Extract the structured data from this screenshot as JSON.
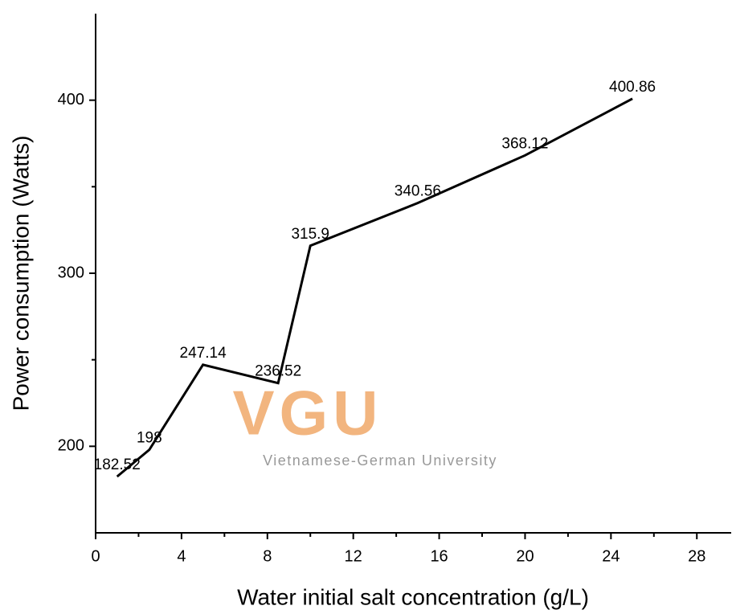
{
  "chart_data": {
    "type": "line",
    "x_label": "Water initial salt concentration (g/L)",
    "y_label": "Power consumption (Watts)",
    "x": [
      1,
      2.5,
      5,
      8.5,
      10,
      15,
      20,
      25
    ],
    "series": [
      {
        "color": "#000000",
        "values": [
          182.52,
          198,
          247.14,
          236.52,
          315.9,
          340.56,
          368.12,
          400.86
        ]
      }
    ],
    "xlim": [
      0,
      29.6
    ],
    "xticks": [
      0,
      4,
      8,
      12,
      16,
      20,
      24,
      28
    ],
    "xminorticks": [
      2,
      6,
      10,
      14,
      18,
      22,
      26
    ],
    "ylim": [
      150,
      450
    ],
    "yticks": [
      200,
      300,
      400
    ],
    "yminorticks": [
      250,
      350
    ],
    "watermark": {
      "logo": "VGU",
      "text": "Vietnamese-German University",
      "color": "#f0a868"
    }
  }
}
